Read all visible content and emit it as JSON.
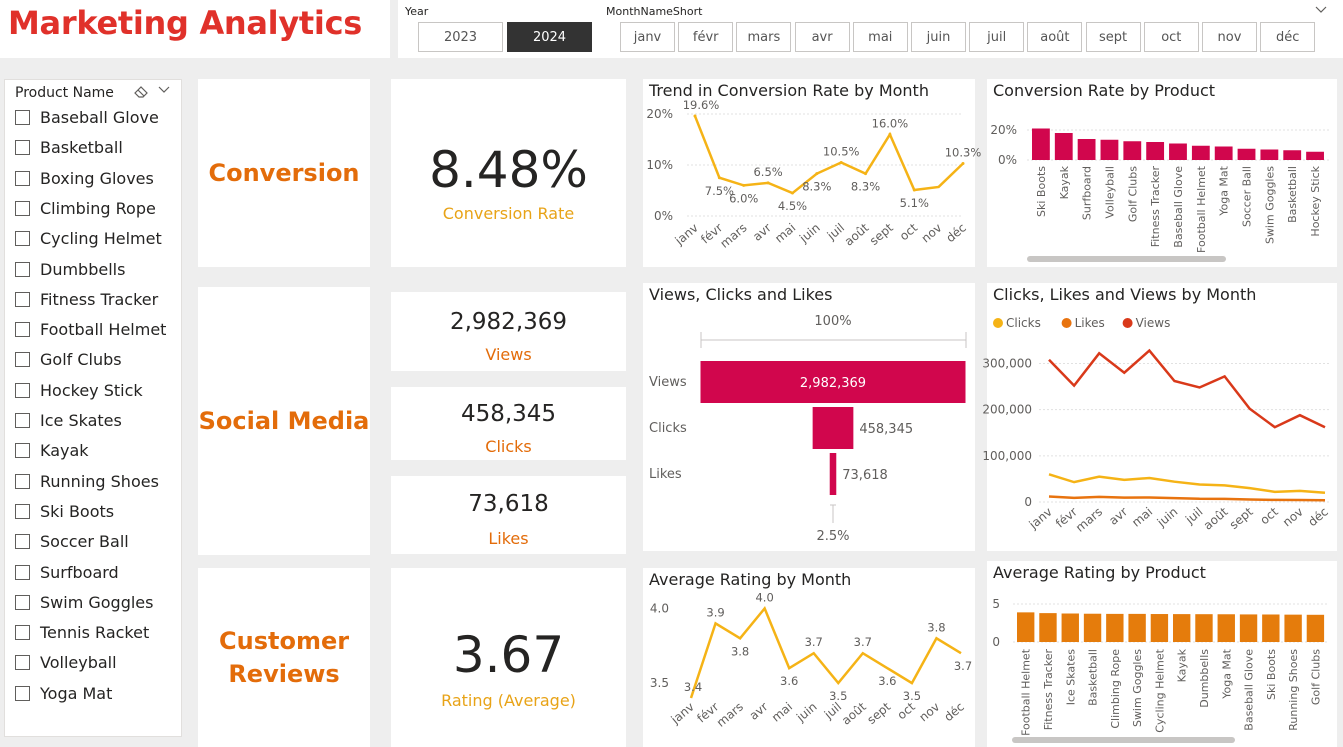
{
  "header": {
    "title": "Marketing Analytics"
  },
  "year_slicer": {
    "caption": "Year",
    "options": [
      "2023",
      "2024"
    ],
    "selected": "2024"
  },
  "month_slicer": {
    "caption": "MonthNameShort",
    "options": [
      "janv",
      "févr",
      "mars",
      "avr",
      "mai",
      "juin",
      "juil",
      "août",
      "sept",
      "oct",
      "nov",
      "déc"
    ]
  },
  "product_slicer": {
    "caption": "Product Name",
    "items": [
      "Baseball Glove",
      "Basketball",
      "Boxing Gloves",
      "Climbing Rope",
      "Cycling Helmet",
      "Dumbbells",
      "Fitness Tracker",
      "Football Helmet",
      "Golf Clubs",
      "Hockey Stick",
      "Ice Skates",
      "Kayak",
      "Running Shoes",
      "Ski Boots",
      "Soccer Ball",
      "Surfboard",
      "Swim Goggles",
      "Tennis Racket",
      "Volleyball",
      "Yoga Mat"
    ]
  },
  "sections": {
    "conversion": "Conversion",
    "social": "Social Media",
    "reviews": "Customer Reviews"
  },
  "kpis": {
    "conversion": {
      "value": "8.48%",
      "label": "Conversion Rate"
    },
    "views": {
      "value": "2,982,369",
      "label": "Views"
    },
    "clicks": {
      "value": "458,345",
      "label": "Clicks"
    },
    "likes": {
      "value": "73,618",
      "label": "Likes"
    },
    "rating": {
      "value": "3.67",
      "label": "Rating (Average)"
    }
  },
  "colors": {
    "title_red": "#e0312a",
    "section_orange": "#e36c0a",
    "kpi_gold": "#e8a317",
    "line_yellow": "#f5b316",
    "bar_crimson": "#d1064d",
    "bar_orange": "#e57c0c",
    "views_red": "#d9391a",
    "likes_orange": "#e8730f"
  },
  "chart_data": [
    {
      "id": "conv_trend",
      "type": "line",
      "title": "Trend in Conversion Rate by Month",
      "categories": [
        "janv",
        "févr",
        "mars",
        "avr",
        "mai",
        "juin",
        "juil",
        "août",
        "sept",
        "oct",
        "nov",
        "déc"
      ],
      "series": [
        {
          "values": [
            19.6,
            7.5,
            6.0,
            6.5,
            4.5,
            8.3,
            10.5,
            8.3,
            16.0,
            5.1,
            null,
            10.3
          ]
        }
      ],
      "data_labels": [
        "19.6%",
        "7.5%",
        "6.0%",
        "6.5%",
        "4.5%",
        "8.3%",
        "10.5%",
        "8.3%",
        "16.0%",
        "5.1%",
        "",
        "10.3%"
      ],
      "yticks": [
        "0%",
        "10%",
        "20%"
      ],
      "ylim": [
        0,
        20
      ]
    },
    {
      "id": "conv_product",
      "type": "bar",
      "title": "Conversion Rate by Product",
      "categories": [
        "Ski Boots",
        "Kayak",
        "Surfboard",
        "Volleyball",
        "Golf Clubs",
        "Fitness Tracker",
        "Baseball Glove",
        "Football Helmet",
        "Yoga Mat",
        "Soccer Ball",
        "Swim Goggles",
        "Basketball",
        "Hockey Stick"
      ],
      "values": [
        21,
        18,
        14,
        13.5,
        12.5,
        12,
        11,
        9.5,
        9,
        7.5,
        7,
        6.5,
        5.5
      ],
      "yticks": [
        "0%",
        "20%"
      ],
      "ylim": [
        0,
        20
      ]
    },
    {
      "id": "funnel",
      "type": "bar",
      "title": "Views, Clicks and Likes",
      "categories": [
        "Views",
        "Clicks",
        "Likes"
      ],
      "values": [
        2982369,
        458345,
        73618
      ],
      "value_labels": [
        "2,982,369",
        "458,345",
        "73,618"
      ],
      "top_pct": "100%",
      "bottom_pct": "2.5%"
    },
    {
      "id": "social_month",
      "type": "line",
      "title": "Clicks, Likes and Views by Month",
      "categories": [
        "janv",
        "févr",
        "mars",
        "avr",
        "mai",
        "juin",
        "juil",
        "août",
        "sept",
        "oct",
        "nov",
        "déc"
      ],
      "series": [
        {
          "name": "Clicks",
          "color": "#f5b316",
          "values": [
            60000,
            43000,
            55000,
            48000,
            52000,
            44000,
            38000,
            36000,
            30000,
            22000,
            24000,
            20000
          ]
        },
        {
          "name": "Likes",
          "color": "#e8730f",
          "values": [
            12000,
            9000,
            11000,
            9500,
            9800,
            8500,
            7000,
            6800,
            5500,
            4500,
            4300,
            3800
          ]
        },
        {
          "name": "Views",
          "color": "#d9391a",
          "values": [
            308000,
            252000,
            322000,
            280000,
            328000,
            262000,
            248000,
            272000,
            202000,
            162000,
            188000,
            162000
          ]
        }
      ],
      "yticks": [
        "0",
        "100,000",
        "200,000",
        "300,000"
      ],
      "ylim": [
        0,
        340000
      ],
      "legend": "top-left"
    },
    {
      "id": "rating_month",
      "type": "line",
      "title": "Average Rating by Month",
      "categories": [
        "janv",
        "févr",
        "mars",
        "avr",
        "mai",
        "juin",
        "juil",
        "août",
        "sept",
        "oct",
        "nov",
        "déc"
      ],
      "series": [
        {
          "values": [
            3.4,
            3.9,
            3.8,
            4.0,
            3.6,
            3.7,
            3.5,
            3.7,
            3.6,
            3.5,
            3.8,
            3.7
          ]
        }
      ],
      "data_labels": [
        "3.4",
        "3.9",
        "3.8",
        "4.0",
        "3.6",
        "3.7",
        "3.5",
        "3.7",
        "3.6",
        "3.5",
        "3.8",
        "3.7"
      ],
      "yticks": [
        "3.5",
        "4.0"
      ],
      "ylim": [
        3.4,
        4.05
      ]
    },
    {
      "id": "rating_product",
      "type": "bar",
      "title": "Average Rating by Product",
      "categories": [
        "Football Helmet",
        "Fitness Tracker",
        "Ice Skates",
        "Basketball",
        "Climbing Rope",
        "Swim Goggles",
        "Cycling Helmet",
        "Kayak",
        "Dumbbells",
        "Yoga Mat",
        "Baseball Glove",
        "Ski Boots",
        "Running Shoes",
        "Golf Clubs"
      ],
      "values": [
        3.9,
        3.8,
        3.75,
        3.72,
        3.7,
        3.7,
        3.68,
        3.67,
        3.66,
        3.65,
        3.63,
        3.62,
        3.6,
        3.58
      ],
      "yticks": [
        "0",
        "5"
      ],
      "ylim": [
        0,
        5
      ]
    }
  ]
}
